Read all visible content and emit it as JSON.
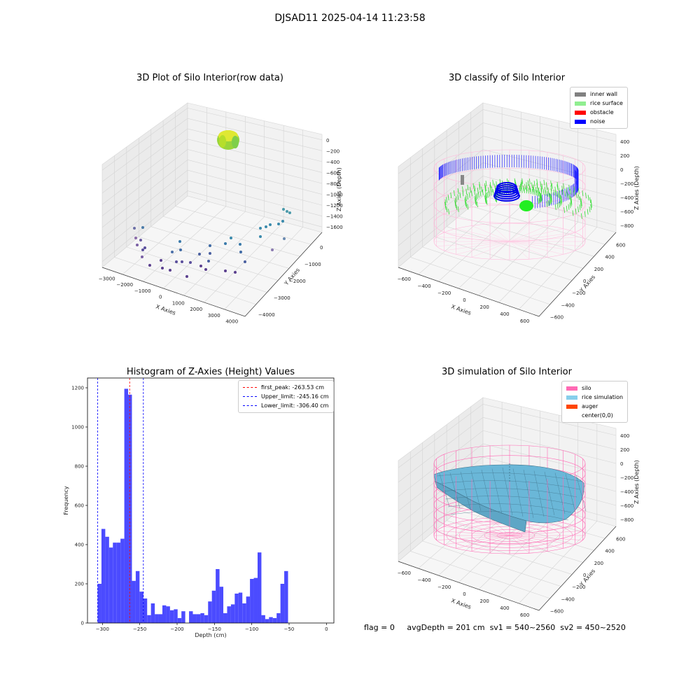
{
  "suptitle": "DJSAD11 2025-04-14 11:23:58",
  "chart_data": [
    {
      "type": "scatter",
      "title": "3D Plot of Silo Interior(row data)",
      "xlabel": "X Axies",
      "ylabel": "Y Axies",
      "zlabel": "Z Axies (Depth)",
      "x_ticks": [
        "−3000",
        "−2000",
        "−1000",
        "0",
        "1000",
        "2000",
        "3000",
        "4000"
      ],
      "y_ticks": [
        "0",
        "−1000",
        "−2000",
        "−3000",
        "−4000"
      ],
      "z_ticks": [
        "0",
        "−200",
        "−400",
        "−600",
        "−800",
        "−1000",
        "−1200",
        "−1400",
        "−1600"
      ]
    },
    {
      "type": "scatter",
      "title": "3D classify of Silo Interior",
      "xlabel": "X Axies",
      "ylabel": "Y Axies",
      "zlabel": "Z Axies (Depth)",
      "x_ticks": [
        "−600",
        "−400",
        "−200",
        "0",
        "200",
        "400",
        "600"
      ],
      "y_ticks": [
        "600",
        "400",
        "200",
        "0",
        "−200",
        "−400",
        "−600"
      ],
      "z_ticks": [
        "400",
        "200",
        "0",
        "−200",
        "−400",
        "−600",
        "−800"
      ],
      "legend": [
        {
          "label": "inner wall",
          "color": "#808080"
        },
        {
          "label": "rice surface",
          "color": "#90ee90"
        },
        {
          "label": "obstacle",
          "color": "#ff0000"
        },
        {
          "label": "noise",
          "color": "#0000ff"
        }
      ]
    },
    {
      "type": "bar",
      "title": "Histogram of Z-Axies (Height) Values",
      "xlabel": "Depth (cm)",
      "ylabel": "Frequency",
      "xlim": [
        -320,
        10
      ],
      "ylim": [
        0,
        1250
      ],
      "x_ticks": [
        -300,
        -250,
        -200,
        -150,
        -100,
        -50,
        0
      ],
      "y_ticks": [
        0,
        200,
        400,
        600,
        800,
        1000,
        1200
      ],
      "bin_start": -306.4,
      "bin_width": 5.1,
      "values": [
        200,
        480,
        440,
        385,
        410,
        410,
        430,
        1195,
        1165,
        215,
        265,
        160,
        125,
        40,
        100,
        45,
        45,
        90,
        85,
        65,
        70,
        25,
        60,
        0,
        60,
        45,
        45,
        50,
        40,
        110,
        165,
        275,
        185,
        50,
        85,
        95,
        150,
        155,
        100,
        135,
        225,
        230,
        360,
        40,
        20,
        30,
        25,
        50,
        200,
        265
      ],
      "lines": [
        {
          "label": "first_peak: -263.53 cm",
          "x": -263.53,
          "color": "#ff0000"
        },
        {
          "label": "Upper_limit: -245.16 cm",
          "x": -245.16,
          "color": "#0000ff"
        },
        {
          "label": "Lower_limit: -306.40 cm",
          "x": -306.4,
          "color": "#0000ff"
        }
      ]
    },
    {
      "type": "area",
      "title": "3D simulation of Silo Interior",
      "xlabel": "X Axies",
      "ylabel": "Y Axies",
      "zlabel": "Z Axies (Depth)",
      "x_ticks": [
        "−600",
        "−400",
        "−200",
        "0",
        "200",
        "400",
        "600"
      ],
      "y_ticks": [
        "600",
        "400",
        "200",
        "0",
        "−200",
        "−400",
        "−600"
      ],
      "z_ticks": [
        "400",
        "200",
        "0",
        "−200",
        "−400",
        "−600",
        "−800"
      ],
      "legend": [
        {
          "label": "silo",
          "color": "#ff69b4"
        },
        {
          "label": "rice simulation",
          "color": "#87ceeb"
        },
        {
          "label": "auger",
          "color": "#ff4500"
        },
        {
          "label": "center(0,0)",
          "color": "#ffffff"
        }
      ]
    }
  ],
  "footer": {
    "flag": "flag = 0",
    "avg": "avgDepth = 201 cm",
    "sv1": "sv1 = 540~2560",
    "sv2": "sv2 = 450~2520"
  }
}
